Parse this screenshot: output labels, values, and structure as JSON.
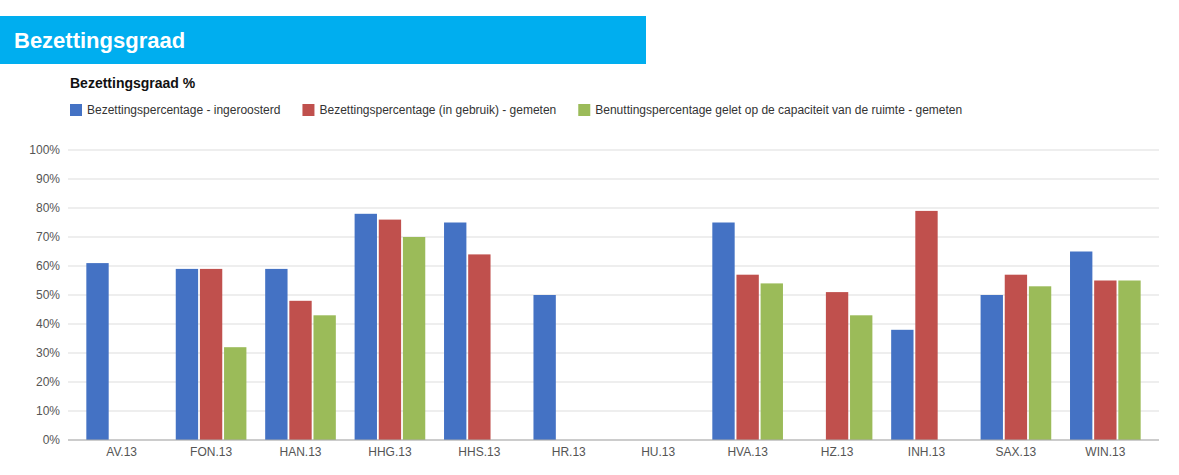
{
  "chart_data": {
    "type": "bar",
    "title": "Bezettingsgraad",
    "subtitle": "Bezettingsgraad %",
    "categories": [
      "AV.13",
      "FON.13",
      "HAN.13",
      "HHG.13",
      "HHS.13",
      "HR.13",
      "HU.13",
      "HVA.13",
      "HZ.13",
      "INH.13",
      "SAX.13",
      "WIN.13"
    ],
    "series": [
      {
        "name": "Bezettingspercentage - ingeroosterd",
        "color": "#4472C4",
        "values": [
          61,
          59,
          59,
          78,
          75,
          50,
          null,
          75,
          null,
          38,
          50,
          65
        ]
      },
      {
        "name": "Bezettingspercentage (in gebruik) - gemeten",
        "color": "#C0504D",
        "values": [
          null,
          59,
          48,
          76,
          64,
          null,
          null,
          57,
          51,
          79,
          57,
          55
        ]
      },
      {
        "name": "Benuttingspercentage gelet op de capaciteit van de ruimte - gemeten",
        "color": "#9BBB59",
        "values": [
          null,
          32,
          43,
          70,
          null,
          null,
          null,
          54,
          43,
          null,
          53,
          55
        ]
      }
    ],
    "ylim": [
      0,
      100
    ],
    "yticks": [
      {
        "value": 0,
        "label": "0%"
      },
      {
        "value": 10,
        "label": "10%"
      },
      {
        "value": 20,
        "label": "20%"
      },
      {
        "value": 30,
        "label": "30%"
      },
      {
        "value": 40,
        "label": "40%"
      },
      {
        "value": 50,
        "label": "50%"
      },
      {
        "value": 60,
        "label": "60%"
      },
      {
        "value": 70,
        "label": "70%"
      },
      {
        "value": 80,
        "label": "80%"
      },
      {
        "value": 90,
        "label": "90%"
      },
      {
        "value": 100,
        "label": "100%"
      }
    ],
    "grid": true,
    "legend": "upper left"
  }
}
